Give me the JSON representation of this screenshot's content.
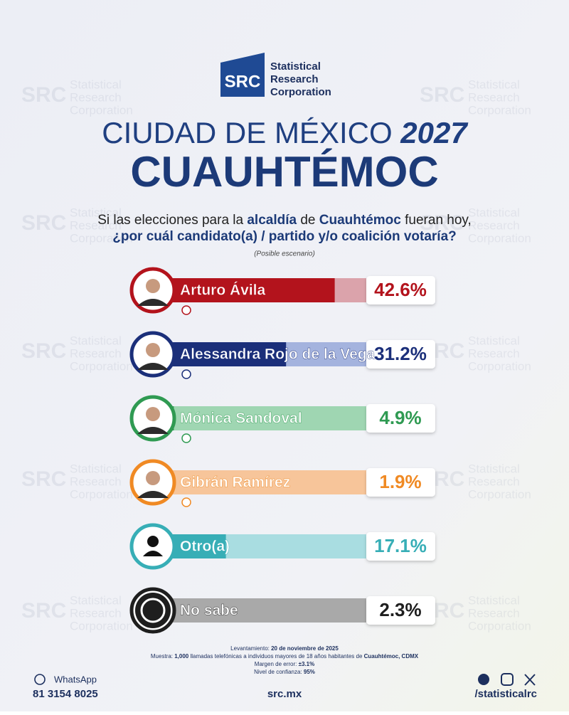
{
  "brand": {
    "logo": "SRC",
    "lines": [
      "Statistical",
      "Research",
      "Corporation"
    ]
  },
  "chart_data": {
    "type": "bar",
    "orientation": "horizontal",
    "title": [
      "CIUDAD DE MÉXICO",
      "2027"
    ],
    "subtitle": "CUAUHTÉMOC",
    "question": [
      [
        "Si las elecciones para la ",
        "alcaldía",
        " de ",
        "Cuauhtémoc",
        " fueran hoy,"
      ],
      [
        "¿por cuál candidato(a) / partido y/o coalición votaría?"
      ]
    ],
    "note": "(Posible escenario)",
    "categories": [
      "Arturo Ávila",
      "Alessandra Rojo de la Vega",
      "Mónica Sandoval",
      "Gibrán Ramírez",
      "Otro(a)",
      "No sabe"
    ],
    "values": [
      42.6,
      31.2,
      4.9,
      1.9,
      17.1,
      2.3
    ],
    "value_labels": [
      "42.6%",
      "31.2%",
      "4.9%",
      "1.9%",
      "17.1%",
      "2.3%"
    ],
    "colors": [
      "#b3131c",
      "#1b2f7a",
      "#2f9a52",
      "#f08a24",
      "#37aeb6",
      "#1e1e1e"
    ],
    "light_colors": [
      "#dba3ab",
      "#a4b3de",
      "#9fd6b2",
      "#f7c59a",
      "#a9dde1",
      "#a9a9a9"
    ],
    "xlim": [
      0,
      50
    ]
  },
  "methodology": [
    [
      "Levantamiento: ",
      "20 de noviembre de 2025"
    ],
    [
      "Muestra: ",
      "1,000",
      " llamadas telefónicas a individuos mayores de 18 años habitantes de ",
      "Cuauhtémoc, CDMX"
    ],
    [
      "Margen de error: ",
      "±3.1%"
    ],
    [
      "Nivel de confianza: ",
      "95%"
    ]
  ],
  "contact": {
    "whatsapp_label": "WhatsApp",
    "phone": "81 3154 8025",
    "website": "src.mx",
    "handle": "/statisticalrc"
  }
}
